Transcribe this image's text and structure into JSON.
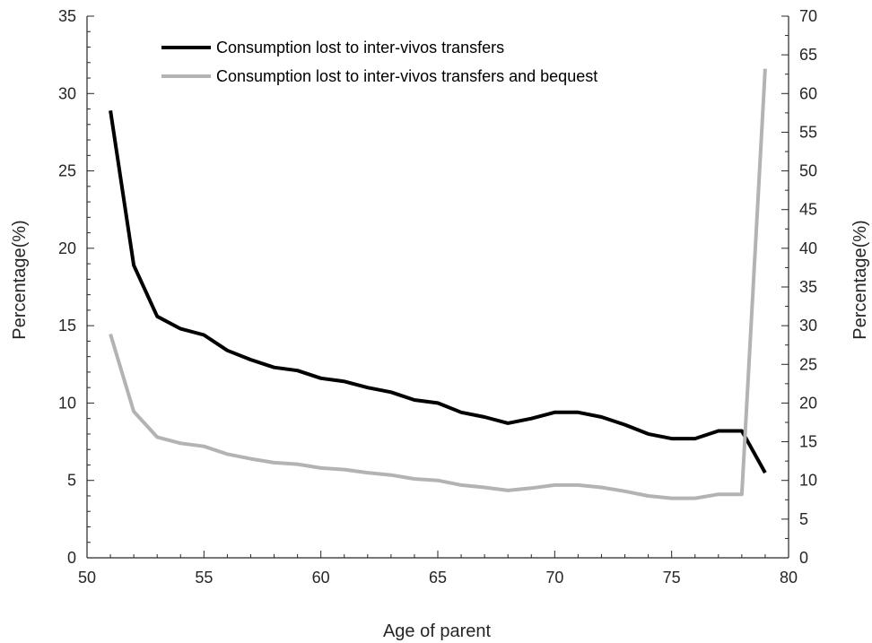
{
  "chart_data": {
    "type": "line",
    "xlabel": "Age of parent",
    "ylabel_left": "Percentage(%)",
    "ylabel_right": "Percentage(%)",
    "xlim": [
      50,
      80
    ],
    "ylim_left": [
      0,
      35
    ],
    "ylim_right": [
      0,
      70
    ],
    "x_ticks": [
      50,
      55,
      60,
      65,
      70,
      75,
      80
    ],
    "y_left_ticks": [
      0,
      5,
      10,
      15,
      20,
      25,
      30,
      35
    ],
    "y_right_ticks": [
      0,
      5,
      10,
      15,
      20,
      25,
      30,
      35,
      40,
      45,
      50,
      55,
      60,
      65,
      70
    ],
    "grid": false,
    "legend_placement": "top-left",
    "series": [
      {
        "name": "Consumption lost to inter-vivos transfers",
        "axis": "left",
        "color": "#000000",
        "x": [
          51,
          52,
          53,
          54,
          55,
          56,
          57,
          58,
          59,
          60,
          61,
          62,
          63,
          64,
          65,
          66,
          67,
          68,
          69,
          70,
          71,
          72,
          73,
          74,
          75,
          76,
          77,
          78,
          79
        ],
        "values": [
          28.9,
          18.9,
          15.6,
          14.8,
          14.4,
          13.4,
          12.8,
          12.3,
          12.1,
          11.6,
          11.4,
          11.0,
          10.7,
          10.2,
          10.0,
          9.4,
          9.1,
          8.7,
          9.0,
          9.4,
          9.4,
          9.1,
          8.6,
          8.0,
          7.7,
          7.7,
          8.2,
          8.2,
          5.5
        ]
      },
      {
        "name": "Consumption lost to inter-vivos transfers and bequest",
        "axis": "right",
        "color": "#b3b3b3",
        "x": [
          51,
          52,
          53,
          54,
          55,
          56,
          57,
          58,
          59,
          60,
          61,
          62,
          63,
          64,
          65,
          66,
          67,
          68,
          69,
          70,
          71,
          72,
          73,
          74,
          75,
          76,
          77,
          78,
          79
        ],
        "values": [
          28.9,
          18.9,
          15.6,
          14.8,
          14.4,
          13.4,
          12.8,
          12.3,
          12.1,
          11.6,
          11.4,
          11.0,
          10.7,
          10.2,
          10.0,
          9.4,
          9.1,
          8.7,
          9.0,
          9.4,
          9.4,
          9.1,
          8.6,
          8.0,
          7.7,
          7.7,
          8.2,
          8.2,
          63.2
        ]
      }
    ]
  }
}
